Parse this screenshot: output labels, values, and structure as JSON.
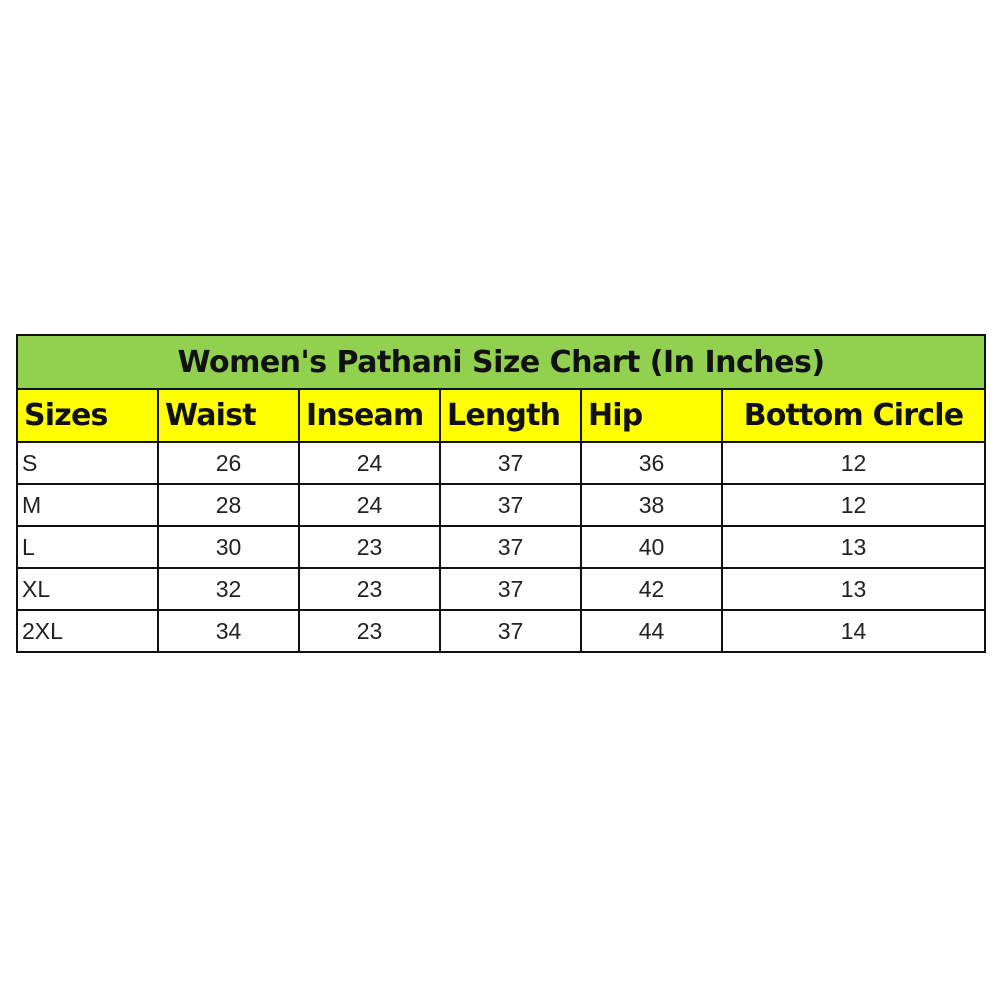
{
  "title": "Women's Pathani Size Chart (In Inches)",
  "colors": {
    "title_bg": "#92d050",
    "header_bg": "#ffff00"
  },
  "headers": [
    "Sizes",
    "Waist",
    "Inseam",
    "Length",
    "Hip",
    "Bottom Circle"
  ],
  "rows": [
    [
      "S",
      "26",
      "24",
      "37",
      "36",
      "12"
    ],
    [
      "M",
      "28",
      "24",
      "37",
      "38",
      "12"
    ],
    [
      "L",
      "30",
      "23",
      "37",
      "40",
      "13"
    ],
    [
      "XL",
      "32",
      "23",
      "37",
      "42",
      "13"
    ],
    [
      "2XL",
      "34",
      "23",
      "37",
      "44",
      "14"
    ]
  ]
}
